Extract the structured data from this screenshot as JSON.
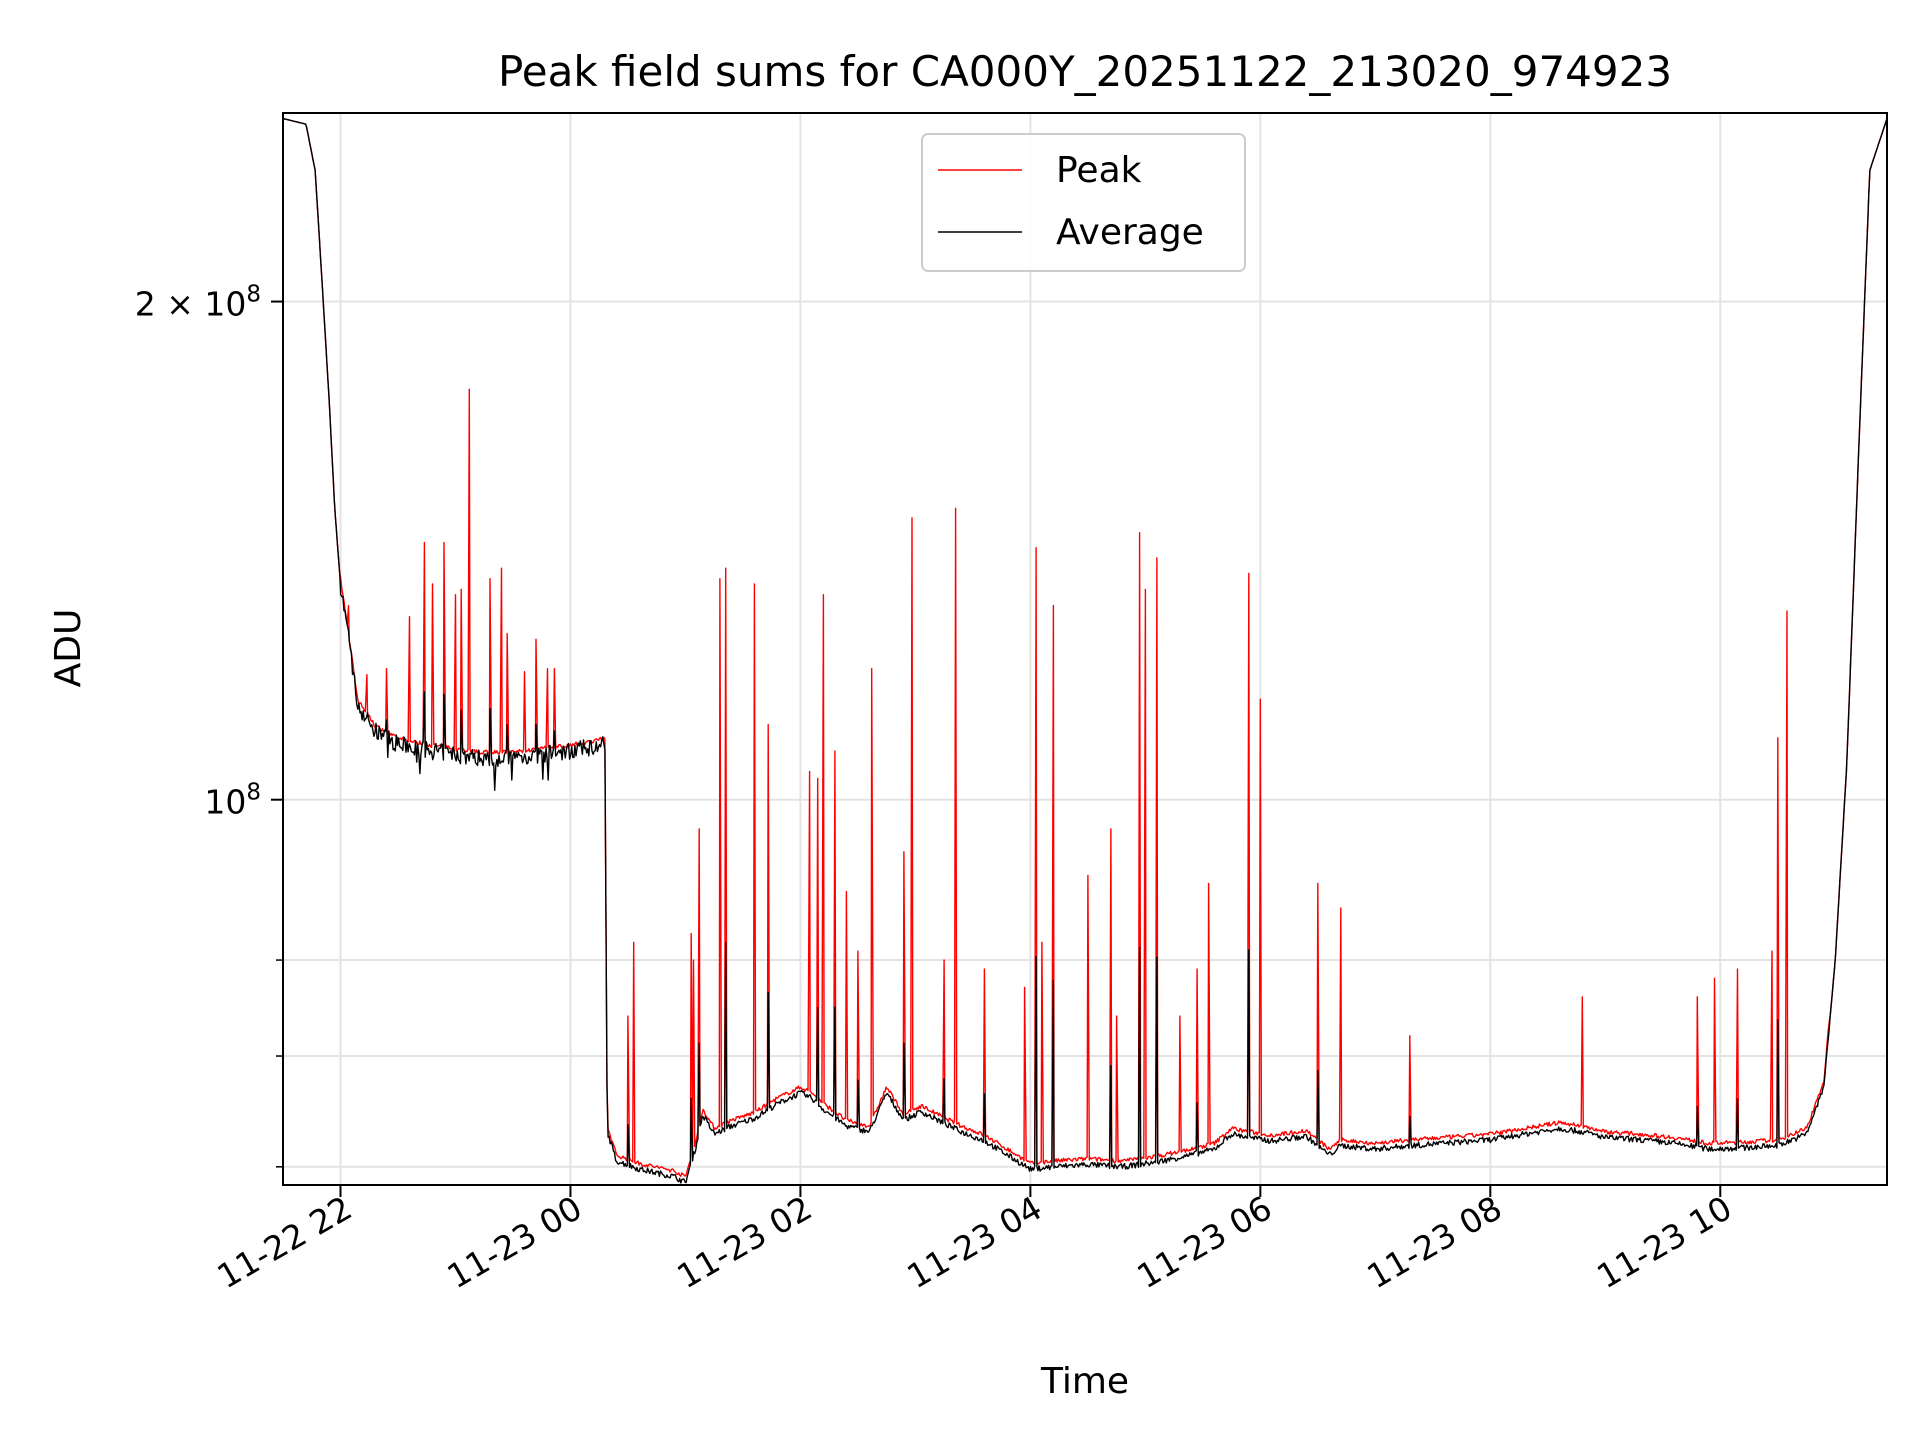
{
  "chart_data": {
    "type": "line",
    "title": "Peak field sums for CA000Y_20251122_213020_974923",
    "xlabel": "Time",
    "ylabel": "ADU",
    "yscale": "log",
    "ylim": [
      58500000,
      260000000
    ],
    "xlim_hours": [
      -2.5,
      11.45
    ],
    "x_ticks": [
      {
        "hour": -2,
        "label": "11-22 22"
      },
      {
        "hour": 0,
        "label": "11-23 00"
      },
      {
        "hour": 2,
        "label": "11-23 02"
      },
      {
        "hour": 4,
        "label": "11-23 04"
      },
      {
        "hour": 6,
        "label": "11-23 06"
      },
      {
        "hour": 8,
        "label": "11-23 08"
      },
      {
        "hour": 10,
        "label": "11-23 10"
      }
    ],
    "y_major_ticks": [
      {
        "value": 200000000,
        "mantissa": "2",
        "exponent": "8"
      },
      {
        "value": 100000000,
        "mantissa": "",
        "exponent": "8"
      }
    ],
    "y_minor_ticks": [
      60000000,
      70000000,
      80000000
    ],
    "grid": true,
    "legend_position": "upper center",
    "series": [
      {
        "name": "Average",
        "color": "#000000",
        "baseline": [
          [
            -2.5,
            258000000
          ],
          [
            -2.3,
            256000000
          ],
          [
            -2.22,
            240000000
          ],
          [
            -2.15,
            200000000
          ],
          [
            -2.1,
            175000000
          ],
          [
            -2.05,
            150000000
          ],
          [
            -2.0,
            135000000
          ],
          [
            -1.93,
            125000000
          ],
          [
            -1.85,
            114000000
          ],
          [
            -1.7,
            110000000
          ],
          [
            -1.5,
            108000000
          ],
          [
            -1.2,
            107000000
          ],
          [
            -0.8,
            106000000
          ],
          [
            -0.5,
            106000000
          ],
          [
            0.0,
            107000000
          ],
          [
            0.3,
            108000000
          ],
          [
            0.32,
            63000000
          ],
          [
            0.4,
            60500000
          ],
          [
            0.6,
            59800000
          ],
          [
            0.9,
            59200000
          ],
          [
            1.0,
            58700000
          ],
          [
            1.1,
            62000000
          ],
          [
            1.15,
            64500000
          ],
          [
            1.25,
            62800000
          ],
          [
            1.4,
            63500000
          ],
          [
            1.6,
            64200000
          ],
          [
            1.8,
            65500000
          ],
          [
            2.0,
            66500000
          ],
          [
            2.1,
            66000000
          ],
          [
            2.2,
            65000000
          ],
          [
            2.4,
            63500000
          ],
          [
            2.6,
            63000000
          ],
          [
            2.75,
            66500000
          ],
          [
            2.9,
            64000000
          ],
          [
            3.05,
            64800000
          ],
          [
            3.2,
            64000000
          ],
          [
            3.4,
            63000000
          ],
          [
            3.6,
            62200000
          ],
          [
            3.8,
            61000000
          ],
          [
            4.0,
            59800000
          ],
          [
            4.2,
            60000000
          ],
          [
            4.5,
            60200000
          ],
          [
            4.8,
            60000000
          ],
          [
            5.1,
            60400000
          ],
          [
            5.4,
            61000000
          ],
          [
            5.6,
            61500000
          ],
          [
            5.75,
            62800000
          ],
          [
            5.9,
            62500000
          ],
          [
            6.1,
            62200000
          ],
          [
            6.4,
            62600000
          ],
          [
            6.6,
            61000000
          ],
          [
            6.7,
            61800000
          ],
          [
            7.0,
            61500000
          ],
          [
            7.3,
            61800000
          ],
          [
            7.6,
            62000000
          ],
          [
            8.0,
            62300000
          ],
          [
            8.3,
            62800000
          ],
          [
            8.6,
            63300000
          ],
          [
            8.8,
            63000000
          ],
          [
            9.0,
            62500000
          ],
          [
            9.3,
            62300000
          ],
          [
            9.6,
            62000000
          ],
          [
            9.9,
            61500000
          ],
          [
            10.2,
            61600000
          ],
          [
            10.5,
            61800000
          ],
          [
            10.75,
            62800000
          ],
          [
            10.9,
            67000000
          ],
          [
            11.0,
            80000000
          ],
          [
            11.1,
            105000000
          ],
          [
            11.2,
            160000000
          ],
          [
            11.3,
            240000000
          ],
          [
            11.45,
            258000000
          ]
        ]
      },
      {
        "name": "Peak",
        "color": "#ff0000",
        "offset_ratio": 1.008,
        "spikes": [
          [
            -1.93,
            131000000
          ],
          [
            -1.77,
            119000000
          ],
          [
            -1.6,
            120000000
          ],
          [
            -1.4,
            129000000
          ],
          [
            -1.27,
            143000000
          ],
          [
            -1.2,
            135000000
          ],
          [
            -1.1,
            143000000
          ],
          [
            -1.0,
            133000000
          ],
          [
            -0.95,
            134000000
          ],
          [
            -0.88,
            177000000
          ],
          [
            -0.7,
            136000000
          ],
          [
            -0.6,
            138000000
          ],
          [
            -0.55,
            126000000
          ],
          [
            -0.4,
            120000000
          ],
          [
            -0.3,
            125000000
          ],
          [
            -0.2,
            120000000
          ],
          [
            -0.14,
            120000000
          ],
          [
            -0.4,
            119500000
          ],
          [
            0.5,
            74000000
          ],
          [
            0.55,
            82000000
          ],
          [
            1.05,
            83000000
          ],
          [
            1.07,
            80000000
          ],
          [
            1.12,
            96000000
          ],
          [
            1.3,
            136000000
          ],
          [
            1.35,
            138000000
          ],
          [
            1.6,
            135000000
          ],
          [
            1.72,
            111000000
          ],
          [
            2.08,
            104000000
          ],
          [
            2.15,
            103000000
          ],
          [
            2.2,
            133000000
          ],
          [
            2.3,
            107000000
          ],
          [
            2.4,
            88000000
          ],
          [
            2.5,
            81000000
          ],
          [
            2.62,
            120000000
          ],
          [
            2.9,
            93000000
          ],
          [
            2.97,
            148000000
          ],
          [
            3.25,
            80000000
          ],
          [
            3.35,
            150000000
          ],
          [
            3.6,
            79000000
          ],
          [
            3.95,
            77000000
          ],
          [
            4.05,
            142000000
          ],
          [
            4.1,
            82000000
          ],
          [
            4.2,
            131000000
          ],
          [
            4.5,
            90000000
          ],
          [
            4.7,
            96000000
          ],
          [
            4.75,
            74000000
          ],
          [
            4.95,
            145000000
          ],
          [
            5.0,
            134000000
          ],
          [
            5.1,
            140000000
          ],
          [
            5.3,
            74000000
          ],
          [
            5.45,
            79000000
          ],
          [
            5.55,
            89000000
          ],
          [
            5.9,
            137000000
          ],
          [
            6.0,
            115000000
          ],
          [
            6.5,
            89000000
          ],
          [
            6.7,
            86000000
          ],
          [
            7.3,
            72000000
          ],
          [
            8.8,
            76000000
          ],
          [
            9.8,
            76000000
          ],
          [
            9.95,
            78000000
          ],
          [
            10.15,
            79000000
          ],
          [
            10.45,
            81000000
          ],
          [
            10.5,
            109000000
          ],
          [
            10.58,
            130000000
          ]
        ]
      }
    ]
  }
}
